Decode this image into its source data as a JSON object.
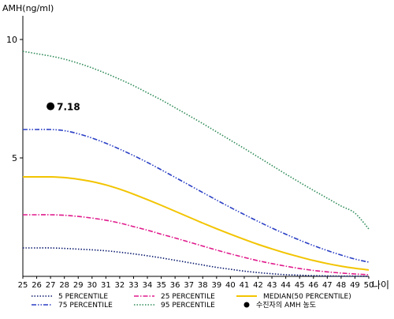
{
  "chart_data": {
    "type": "line",
    "ylabel": "AMH(ng/ml)",
    "xlabel": "나이",
    "x": [
      25,
      26,
      27,
      28,
      29,
      30,
      31,
      32,
      33,
      34,
      35,
      36,
      37,
      38,
      39,
      40,
      41,
      42,
      43,
      44,
      45,
      46,
      47,
      48,
      49,
      50
    ],
    "xlim": [
      25,
      50
    ],
    "ylim": [
      0,
      11
    ],
    "y_ticks": [
      5,
      10
    ],
    "grid": false,
    "legend_position": "bottom",
    "series": [
      {
        "name": "5 PERCENTILE",
        "color": "#0b1a6e",
        "style": "dotted",
        "values": [
          1.2,
          1.2,
          1.2,
          1.18,
          1.15,
          1.12,
          1.08,
          1.02,
          0.95,
          0.87,
          0.78,
          0.68,
          0.58,
          0.48,
          0.38,
          0.3,
          0.22,
          0.16,
          0.11,
          0.07,
          0.05,
          0.03,
          0.02,
          0.01,
          0.01,
          0.0
        ]
      },
      {
        "name": "25 PERCENTILE",
        "color": "#e01a8c",
        "style": "dash-dot",
        "values": [
          2.6,
          2.6,
          2.6,
          2.58,
          2.53,
          2.46,
          2.37,
          2.25,
          2.1,
          1.95,
          1.78,
          1.62,
          1.45,
          1.28,
          1.11,
          0.95,
          0.8,
          0.66,
          0.54,
          0.43,
          0.33,
          0.25,
          0.19,
          0.14,
          0.1,
          0.07
        ]
      },
      {
        "name": "MEDIAN(50 PERCENTILE)",
        "color": "#f2c400",
        "style": "solid",
        "values": [
          4.2,
          4.2,
          4.2,
          4.17,
          4.1,
          4.0,
          3.86,
          3.68,
          3.47,
          3.24,
          3.0,
          2.75,
          2.5,
          2.25,
          2.01,
          1.78,
          1.56,
          1.35,
          1.16,
          0.98,
          0.82,
          0.67,
          0.54,
          0.43,
          0.34,
          0.27
        ]
      },
      {
        "name": "75 PERCENTILE",
        "color": "#2a3fc4",
        "style": "dash-dot-dot",
        "values": [
          6.2,
          6.2,
          6.2,
          6.15,
          6.02,
          5.84,
          5.62,
          5.37,
          5.1,
          4.81,
          4.5,
          4.18,
          3.86,
          3.54,
          3.22,
          2.91,
          2.61,
          2.32,
          2.04,
          1.78,
          1.53,
          1.3,
          1.09,
          0.9,
          0.73,
          0.6
        ]
      },
      {
        "name": "95 PERCENTILE",
        "color": "#2e8b57",
        "style": "dotted",
        "values": [
          9.5,
          9.4,
          9.3,
          9.17,
          9.0,
          8.8,
          8.57,
          8.32,
          8.05,
          7.75,
          7.45,
          7.12,
          6.79,
          6.45,
          6.1,
          5.75,
          5.4,
          5.04,
          4.68,
          4.32,
          3.97,
          3.63,
          3.3,
          2.97,
          2.67,
          2.0
        ]
      }
    ],
    "patient_point": {
      "name": "수진자의 AMH 농도",
      "x": 27,
      "y": 7.18,
      "label": "7.18",
      "color": "#000000"
    }
  }
}
